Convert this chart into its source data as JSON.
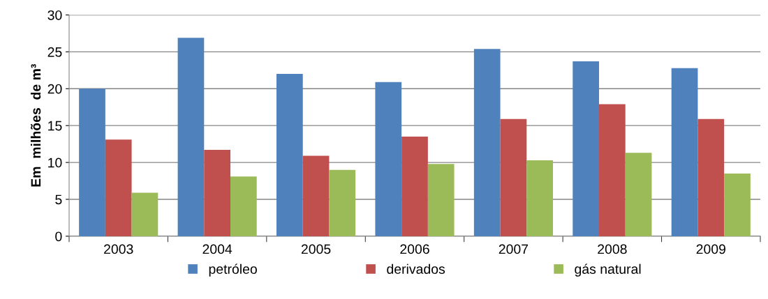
{
  "chart_data": {
    "type": "bar",
    "ylabel": "Em  milhões  de m³",
    "categories": [
      "2003",
      "2004",
      "2005",
      "2006",
      "2007",
      "2008",
      "2009"
    ],
    "series": [
      {
        "name": "petróleo",
        "color": "#4f81bd",
        "values": [
          20,
          26.9,
          22,
          20.9,
          25.4,
          23.7,
          22.8
        ]
      },
      {
        "name": "derivados",
        "color": "#c0504d",
        "values": [
          13.1,
          11.7,
          10.9,
          13.5,
          15.9,
          17.9,
          15.9
        ]
      },
      {
        "name": "gás natural",
        "color": "#9bbb59",
        "values": [
          5.9,
          8.1,
          9.0,
          9.8,
          10.3,
          11.3,
          8.5
        ]
      }
    ],
    "ylim": [
      0,
      30
    ],
    "yticks": [
      0,
      5,
      10,
      15,
      20,
      25,
      30
    ],
    "grid": "y",
    "legend": "bottom"
  }
}
